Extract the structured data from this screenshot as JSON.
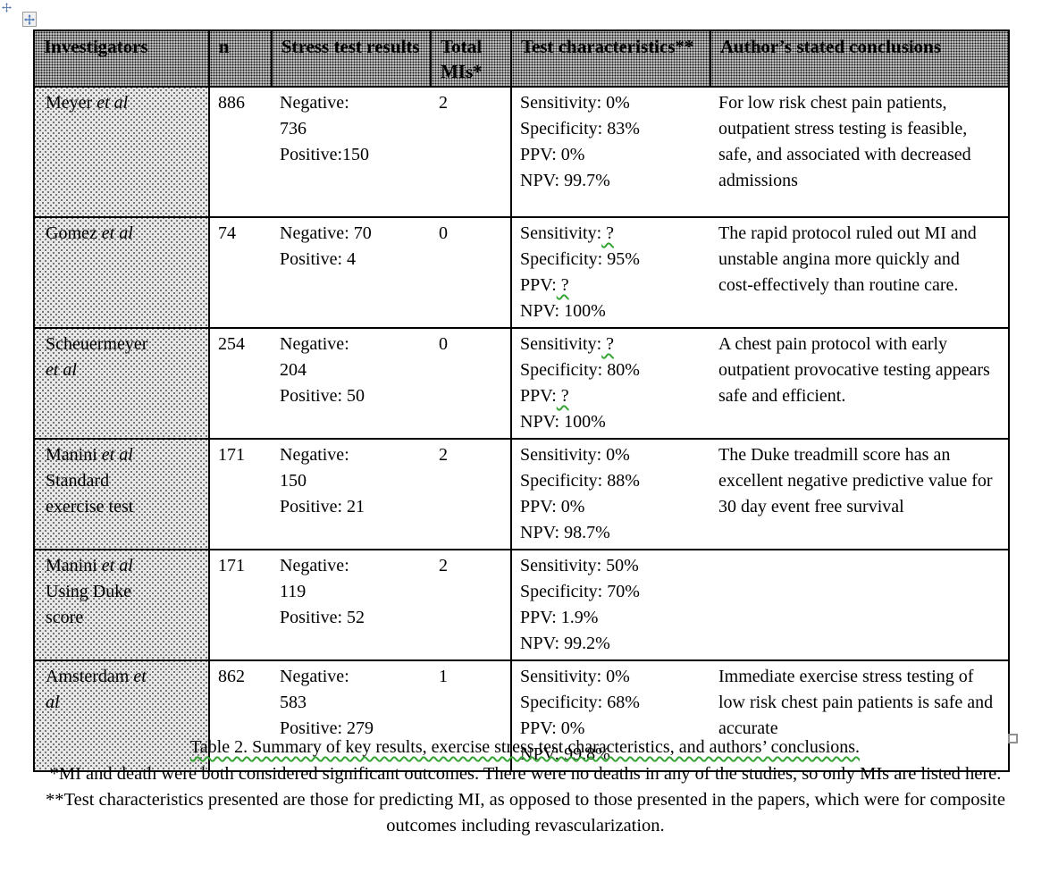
{
  "table": {
    "headers": [
      "Investigators",
      "n",
      "Stress test results",
      "Total MIs*",
      "Test characteristics**",
      "Author’s stated conclusions"
    ],
    "rows": [
      {
        "investigator": [
          [
            {
              "t": "Meyer ",
              "i": false
            },
            {
              "t": "et al",
              "i": true
            }
          ]
        ],
        "n": "886",
        "stress": [
          "Negative:",
          "736",
          "Positive:150"
        ],
        "total_mi": "2",
        "test": [
          {
            "t": "Sensitivity: 0%"
          },
          {
            "t": "Specificity: 83%"
          },
          {
            "t": "PPV: 0%"
          },
          {
            "t": "NPV: 99.7%"
          }
        ],
        "conclusion": "For low risk chest pain patients, outpatient stress testing is feasible, safe, and associated with decreased admissions"
      },
      {
        "investigator": [
          [
            {
              "t": "Gomez ",
              "i": false
            },
            {
              "t": "et al",
              "i": true
            }
          ]
        ],
        "n": "74",
        "stress": [
          "Negative: 70",
          "Positive: 4"
        ],
        "total_mi": "0",
        "test": [
          {
            "t": "Sensitivity:",
            "q": " ?"
          },
          {
            "t": "Specificity: 95%"
          },
          {
            "t": "PPV:",
            "q": " ?"
          },
          {
            "t": "NPV: 100%"
          }
        ],
        "conclusion": "The rapid protocol ruled out MI and unstable angina more quickly and cost-effectively than routine care."
      },
      {
        "investigator": [
          [
            {
              "t": "Scheuermeyer",
              "i": false
            }
          ],
          [
            {
              "t": "et al",
              "i": true
            }
          ]
        ],
        "n": "254",
        "stress": [
          "Negative:",
          "204",
          "Positive: 50"
        ],
        "total_mi": "0",
        "test": [
          {
            "t": "Sensitivity:",
            "q": " ?"
          },
          {
            "t": "Specificity: 80%"
          },
          {
            "t": "PPV:",
            "q": " ?"
          },
          {
            "t": "NPV: 100%"
          }
        ],
        "conclusion": "A chest pain protocol with early outpatient provocative testing appears safe and efficient."
      },
      {
        "investigator": [
          [
            {
              "t": "Manini ",
              "i": false
            },
            {
              "t": "et al",
              "i": true
            }
          ],
          [
            {
              "t": "Standard",
              "i": false
            }
          ],
          [
            {
              "t": "exercise test",
              "i": false
            }
          ]
        ],
        "n": "171",
        "stress": [
          "Negative:",
          "150",
          "Positive: 21"
        ],
        "total_mi": "2",
        "test": [
          {
            "t": "Sensitivity: 0%"
          },
          {
            "t": "Specificity: 88%"
          },
          {
            "t": "PPV: 0%"
          },
          {
            "t": "NPV: 98.7%"
          }
        ],
        "conclusion": "The Duke treadmill score has an excellent negative predictive value for 30 day event free survival"
      },
      {
        "investigator": [
          [
            {
              "t": "Manini ",
              "i": false
            },
            {
              "t": "et al",
              "i": true
            }
          ],
          [
            {
              "t": "Using Duke",
              "i": false
            }
          ],
          [
            {
              "t": "score",
              "i": false
            }
          ]
        ],
        "n": "171",
        "stress": [
          "Negative:",
          "119",
          "Positive: 52"
        ],
        "total_mi": "2",
        "test": [
          {
            "t": "Sensitivity: 50%"
          },
          {
            "t": "Specificity: 70%"
          },
          {
            "t": "PPV: 1.9%"
          },
          {
            "t": "NPV: 99.2%"
          }
        ],
        "conclusion": ""
      },
      {
        "investigator": [
          [
            {
              "t": "Amsterdam ",
              "i": false
            },
            {
              "t": "et",
              "i": true
            }
          ],
          [
            {
              "t": "al",
              "i": true
            }
          ]
        ],
        "n": "862",
        "stress": [
          "Negative:",
          "583",
          "Positive: 279"
        ],
        "total_mi": "1",
        "test": [
          {
            "t": "Sensitivity: 0%"
          },
          {
            "t": "Specificity: 68%"
          },
          {
            "t": "PPV: 0%"
          },
          {
            "t": "NPV: 99.8%"
          }
        ],
        "conclusion": "Immediate exercise stress testing of low risk chest pain patients is safe and accurate"
      }
    ]
  },
  "caption": "Table 2. Summary of key results, exercise stress test characteristics, and authors’ conclusions.",
  "footnote": "*MI and death were both considered significant outcomes. There were no deaths in any of the studies, so only MIs are listed here. **Test characteristics presented are those for predicting MI, as opposed to those presented in the papers, which were for composite outcomes including revascularization.",
  "colors": {
    "squiggle_green": "#35a435",
    "table_border": "#000000",
    "header_shading": "dotted 25% gray pattern",
    "first_column_shading": "dotted 12.5% gray pattern"
  },
  "icons": {
    "move_handle": "four-way move arrows",
    "resize_handle": "small hollow square"
  }
}
